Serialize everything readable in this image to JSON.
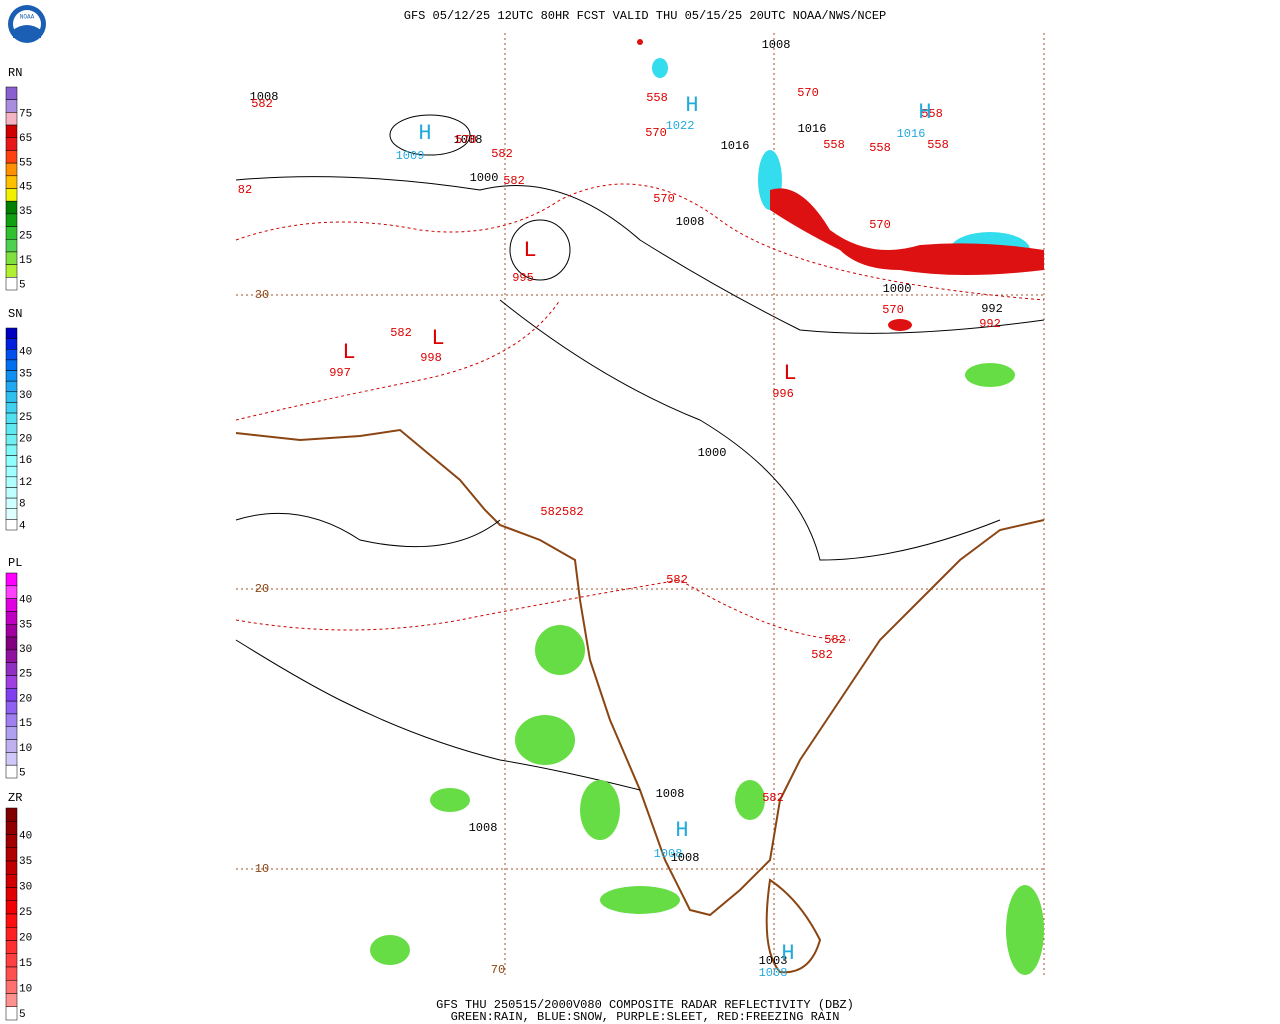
{
  "header": {
    "title": "GFS 05/12/25 12UTC 80HR FCST VALID THU 05/15/25 20UTC NOAA/NWS/NCEP",
    "logo": "NOAA"
  },
  "footer": {
    "line1": "GFS THU 250515/2000V080 COMPOSITE RADAR REFLECTIVITY (DBZ)",
    "line2": "GREEN:RAIN, BLUE:SNOW, PURPLE:SLEET, RED:FREEZING RAIN"
  },
  "legends": [
    {
      "title": "RN",
      "labels": [
        "75",
        "65",
        "55",
        "45",
        "35",
        "25",
        "15",
        "5"
      ],
      "colors": [
        "#8a5fd0",
        "#a98ee0",
        "#f4b4c4",
        "#d00000",
        "#e81818",
        "#ff4010",
        "#ff9000",
        "#ffc000",
        "#f0f000",
        "#008000",
        "#10a010",
        "#30c030",
        "#50d050",
        "#80e040",
        "#b0f030",
        "#ffffff"
      ]
    },
    {
      "title": "SN",
      "labels": [
        "40",
        "35",
        "30",
        "25",
        "20",
        "16",
        "12",
        "8",
        "4"
      ],
      "colors": [
        "#0000c0",
        "#0020e0",
        "#0050f0",
        "#0070f0",
        "#1090f0",
        "#20a8f0",
        "#30c0f0",
        "#40d0f0",
        "#50e0f0",
        "#60e8f0",
        "#70f0f0",
        "#80f8f8",
        "#90ffff",
        "#a0ffff",
        "#b0ffff",
        "#c0ffff",
        "#d0ffff",
        "#e0ffff",
        "#ffffff"
      ]
    },
    {
      "title": "PL",
      "labels": [
        "40",
        "35",
        "30",
        "25",
        "20",
        "15",
        "10",
        "5"
      ],
      "colors": [
        "#ff00ff",
        "#ff40ff",
        "#e000e0",
        "#c000c0",
        "#a000a0",
        "#800080",
        "#9010a0",
        "#9030c0",
        "#a040e0",
        "#8040f0",
        "#9060f0",
        "#a080f0",
        "#b0a0f0",
        "#c0b0f0",
        "#d0c8f8",
        "#ffffff"
      ]
    },
    {
      "title": "ZR",
      "labels": [
        "40",
        "35",
        "30",
        "25",
        "20",
        "15",
        "10",
        "5"
      ],
      "colors": [
        "#800000",
        "#900000",
        "#a00000",
        "#b00000",
        "#c00000",
        "#d00000",
        "#e00000",
        "#f00000",
        "#ff1010",
        "#ff2020",
        "#ff3030",
        "#ff4040",
        "#ff5050",
        "#ff7070",
        "#ff9090",
        "#ffffff"
      ]
    }
  ],
  "map": {
    "labels": [
      {
        "text": "1008",
        "color": "#000000"
      },
      {
        "text": "1008",
        "color": "#000000"
      },
      {
        "text": "582",
        "color": "#dd0000"
      },
      {
        "text": "H",
        "color": "#22aadd"
      },
      {
        "text": "1009",
        "color": "#22aadd"
      },
      {
        "text": "1008",
        "color": "#000000"
      },
      {
        "text": "570",
        "color": "#dd0000"
      },
      {
        "text": "582",
        "color": "#dd0000"
      },
      {
        "text": "1000",
        "color": "#000000"
      },
      {
        "text": "582",
        "color": "#dd0000"
      },
      {
        "text": "82",
        "color": "#dd0000"
      },
      {
        "text": "L",
        "color": "#dd0000"
      },
      {
        "text": "995",
        "color": "#dd0000"
      },
      {
        "text": "558",
        "color": "#dd0000"
      },
      {
        "text": "H",
        "color": "#22aadd"
      },
      {
        "text": "1022",
        "color": "#22aadd"
      },
      {
        "text": "570",
        "color": "#dd0000"
      },
      {
        "text": "1016",
        "color": "#000000"
      },
      {
        "text": "570",
        "color": "#dd0000"
      },
      {
        "text": "1008",
        "color": "#000000"
      },
      {
        "text": "570",
        "color": "#dd0000"
      },
      {
        "text": "1016",
        "color": "#000000"
      },
      {
        "text": "558",
        "color": "#dd0000"
      },
      {
        "text": "558",
        "color": "#dd0000"
      },
      {
        "text": "558",
        "color": "#dd0000"
      },
      {
        "text": "558",
        "color": "#dd0000"
      },
      {
        "text": "H",
        "color": "#22aadd"
      },
      {
        "text": "1016",
        "color": "#22aadd"
      },
      {
        "text": "570",
        "color": "#dd0000"
      },
      {
        "text": "1000",
        "color": "#000000"
      },
      {
        "text": "570",
        "color": "#dd0000"
      },
      {
        "text": "992",
        "color": "#000000"
      },
      {
        "text": "992",
        "color": "#dd0000"
      },
      {
        "text": "30",
        "color": "#8b4513"
      },
      {
        "text": "582",
        "color": "#dd0000"
      },
      {
        "text": "L",
        "color": "#dd0000"
      },
      {
        "text": "998",
        "color": "#dd0000"
      },
      {
        "text": "L",
        "color": "#dd0000"
      },
      {
        "text": "997",
        "color": "#dd0000"
      },
      {
        "text": "L",
        "color": "#dd0000"
      },
      {
        "text": "996",
        "color": "#dd0000"
      },
      {
        "text": "1000",
        "color": "#000000"
      },
      {
        "text": "582582",
        "color": "#dd0000"
      },
      {
        "text": "582",
        "color": "#dd0000"
      },
      {
        "text": "20",
        "color": "#8b4513"
      },
      {
        "text": "582",
        "color": "#dd0000"
      },
      {
        "text": "582",
        "color": "#dd0000"
      },
      {
        "text": "582",
        "color": "#dd0000"
      },
      {
        "text": "1008",
        "color": "#000000"
      },
      {
        "text": "1008",
        "color": "#000000"
      },
      {
        "text": "H",
        "color": "#22aadd"
      },
      {
        "text": "1008",
        "color": "#22aadd"
      },
      {
        "text": "1008",
        "color": "#000000"
      },
      {
        "text": "10",
        "color": "#8b4513"
      },
      {
        "text": "70",
        "color": "#8b4513"
      },
      {
        "text": "1003",
        "color": "#000000"
      },
      {
        "text": "H",
        "color": "#22aadd"
      },
      {
        "text": "1008",
        "color": "#22aadd"
      }
    ]
  }
}
